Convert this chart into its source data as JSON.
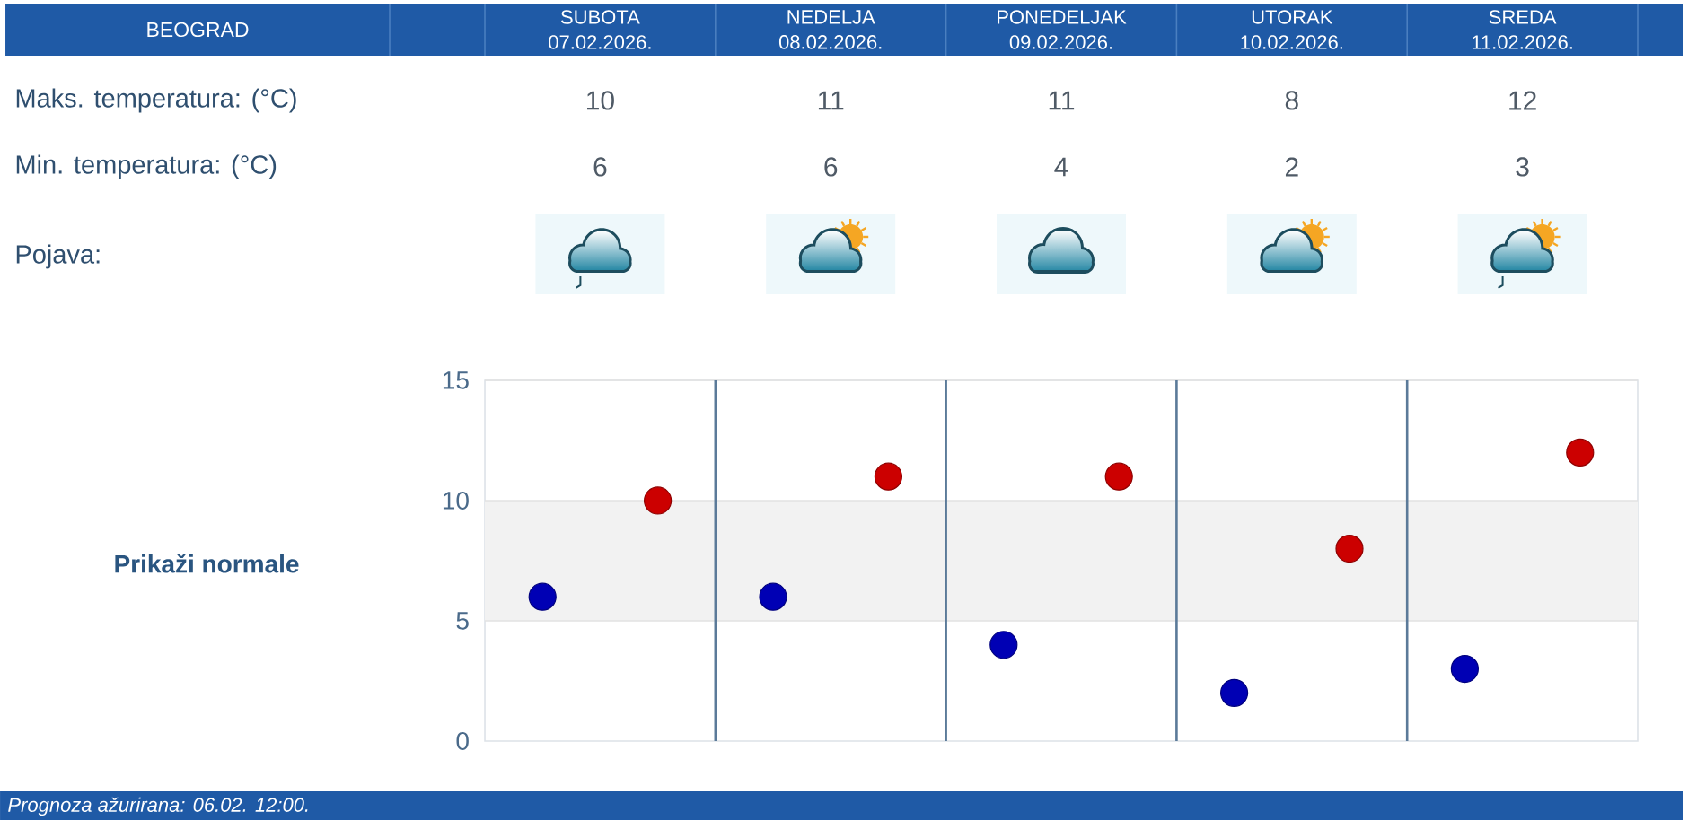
{
  "chart_data": {
    "type": "scatter",
    "title": "BEOGRAD",
    "categories": [
      null,
      null,
      null,
      null,
      null
    ],
    "series": [
      {
        "color": "#cc0000",
        "values": [
          10,
          11,
          11,
          8,
          12
        ]
      },
      {
        "color": "#0000b4",
        "values": [
          6,
          6,
          4,
          2,
          3
        ]
      }
    ],
    "ylim": [
      0,
      15
    ],
    "yticks": [
      0,
      5,
      10,
      15
    ],
    "grid": true,
    "marker": "circle",
    "data_labels": true,
    "bands": [
      {
        "axis": "y",
        "from": 5,
        "to": 10,
        "color": "#f2f2f2"
      }
    ],
    "annotations": [
      "SUBOTA 07.02.2026.",
      "NEDELJA 08.02.2026.",
      "PONEDELJAK 09.02.2026.",
      "UTORAK 10.02.2026.",
      "SREDA 11.02.2026.",
      "Maks. temperatura: (°C)",
      "Min. temperatura: (°C)",
      "Pojava:",
      "Prikaži normale",
      "Prognoza ažurirana: 06.02. 12:00."
    ]
  }
}
